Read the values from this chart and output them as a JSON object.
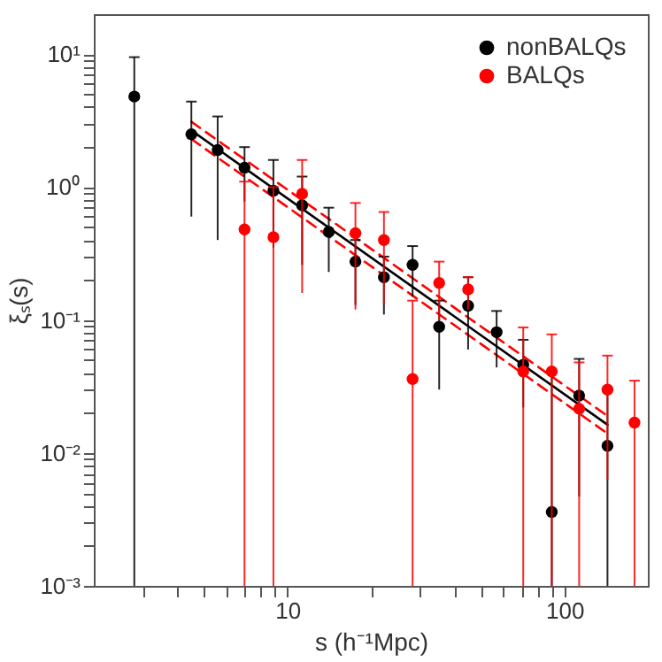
{
  "chart_data": {
    "type": "scatter",
    "xlabel": "s (h⁻¹Mpc)",
    "ylabel": "ξₛ(s)",
    "log": "xy",
    "marker": "circle",
    "legend": "top right",
    "xlim": [
      2,
      200
    ],
    "ylim": [
      0.001,
      20
    ],
    "xticks": [
      {
        "value": 3,
        "label": null
      },
      {
        "value": 4,
        "label": null
      },
      {
        "value": 5,
        "label": null
      },
      {
        "value": 6,
        "label": null
      },
      {
        "value": 7,
        "label": null
      },
      {
        "value": 8,
        "label": null
      },
      {
        "value": 9,
        "label": null
      },
      10,
      {
        "value": 20,
        "label": null
      },
      {
        "value": 30,
        "label": null
      },
      {
        "value": 40,
        "label": null
      },
      {
        "value": 50,
        "label": null
      },
      {
        "value": 60,
        "label": null
      },
      {
        "value": 70,
        "label": null
      },
      {
        "value": 80,
        "label": null
      },
      {
        "value": 90,
        "label": null
      },
      100
    ],
    "yticks": [
      {
        "value": 0.001,
        "label": "10⁻³"
      },
      {
        "value": 0.002,
        "label": null
      },
      {
        "value": 0.003,
        "label": null
      },
      {
        "value": 0.004,
        "label": null
      },
      {
        "value": 0.005,
        "label": null
      },
      {
        "value": 0.006,
        "label": null
      },
      {
        "value": 0.007,
        "label": null
      },
      {
        "value": 0.008,
        "label": null
      },
      {
        "value": 0.009,
        "label": null
      },
      {
        "value": 0.01,
        "label": "10⁻²"
      },
      {
        "value": 0.02,
        "label": null
      },
      {
        "value": 0.03,
        "label": null
      },
      {
        "value": 0.04,
        "label": null
      },
      {
        "value": 0.05,
        "label": null
      },
      {
        "value": 0.06,
        "label": null
      },
      {
        "value": 0.07,
        "label": null
      },
      {
        "value": 0.08,
        "label": null
      },
      {
        "value": 0.09,
        "label": null
      },
      {
        "value": 0.1,
        "label": "10⁻¹"
      },
      {
        "value": 0.2,
        "label": null
      },
      {
        "value": 0.3,
        "label": null
      },
      {
        "value": 0.4,
        "label": null
      },
      {
        "value": 0.5,
        "label": null
      },
      {
        "value": 0.6,
        "label": null
      },
      {
        "value": 0.7,
        "label": null
      },
      {
        "value": 0.8,
        "label": null
      },
      {
        "value": 0.9,
        "label": null
      },
      {
        "value": 1,
        "label": "10⁰"
      },
      {
        "value": 2,
        "label": null
      },
      {
        "value": 3,
        "label": null
      },
      {
        "value": 4,
        "label": null
      },
      {
        "value": 5,
        "label": null
      },
      {
        "value": 6,
        "label": null
      },
      {
        "value": 7,
        "label": null
      },
      {
        "value": 8,
        "label": null
      },
      {
        "value": 9,
        "label": null
      },
      {
        "value": 10,
        "label": "10¹"
      }
    ],
    "series": [
      {
        "type": "line",
        "marker": "none",
        "color": "#000000",
        "line_style": "solid",
        "x": [
          4.5,
          143
        ],
        "values": [
          2.67,
          0.0163
        ]
      },
      {
        "type": "line",
        "marker": "none",
        "color": "#ff0000",
        "line_style": "dashed",
        "x": [
          4.5,
          143
        ],
        "values": [
          3.1,
          0.019
        ]
      },
      {
        "type": "line",
        "marker": "none",
        "color": "#ff0000",
        "line_style": "dashed",
        "x": [
          4.5,
          143
        ],
        "values": [
          2.3,
          0.014
        ]
      },
      {
        "name": "nonBALQs",
        "color": "#000000",
        "x": [
          2.8,
          4.5,
          5.6,
          7.0,
          8.9,
          11.3,
          14.1,
          17.6,
          22.3,
          28.3,
          35.3,
          44.9,
          56.9,
          71,
          90,
          113,
          143
        ],
        "values": [
          4.8,
          2.5,
          1.9,
          1.4,
          0.94,
          0.73,
          0.46,
          0.275,
          0.21,
          0.26,
          0.089,
          0.128,
          0.081,
          0.046,
          0.0036,
          0.027,
          0.0113
        ],
        "errors": [
          [
            0.001,
            9.5
          ],
          [
            0.6,
            4.4
          ],
          [
            0.4,
            3.4
          ],
          [
            0.78,
            2.0
          ],
          [
            0.35,
            1.6
          ],
          [
            0.26,
            1.2
          ],
          [
            0.23,
            0.7
          ],
          [
            0.13,
            0.4
          ],
          [
            0.11,
            0.3
          ],
          [
            0.15,
            0.36
          ],
          [
            0.03,
            0.14
          ],
          [
            0.06,
            0.21
          ],
          [
            0.044,
            0.117
          ],
          [
            0.022,
            0.071
          ],
          [
            0.001,
            0.04
          ],
          [
            0.0047,
            0.051
          ],
          [
            0.001,
            0.03
          ]
        ]
      },
      {
        "name": "BALQs",
        "color": "#ff0000",
        "x": [
          7.0,
          8.9,
          11.3,
          14.1,
          17.6,
          22.3,
          28.3,
          35.3,
          44.9,
          71,
          90,
          113,
          143,
          179
        ],
        "values": [
          0.48,
          0.42,
          0.89,
          null,
          0.45,
          0.4,
          0.036,
          0.19,
          0.17,
          0.041,
          0.041,
          0.0215,
          0.03,
          0.0169
        ],
        "errors": [
          [
            0.001,
            1.1
          ],
          [
            0.001,
            1.0
          ],
          [
            0.16,
            1.6
          ],
          null,
          [
            0.12,
            0.76
          ],
          [
            0.13,
            0.65
          ],
          [
            0.001,
            0.14
          ],
          [
            0.1,
            0.275
          ],
          [
            0.12,
            0.21
          ],
          [
            0.001,
            0.088
          ],
          [
            0.001,
            0.078
          ],
          [
            0.001,
            0.048
          ],
          [
            0.0063,
            0.054
          ],
          [
            0.001,
            0.035
          ]
        ]
      }
    ]
  }
}
